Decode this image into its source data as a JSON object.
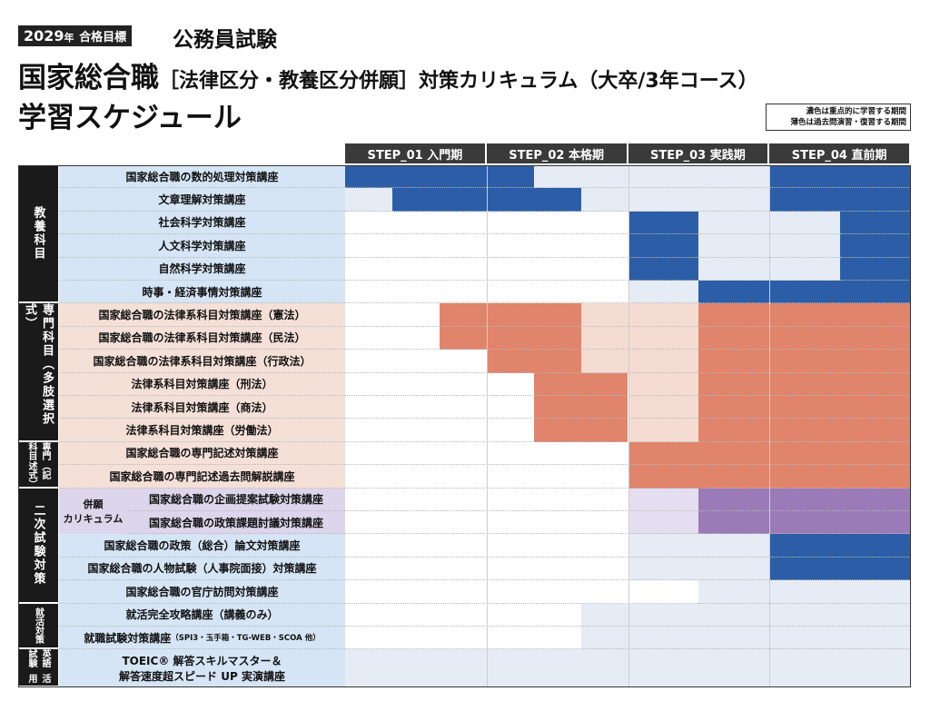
{
  "header": {
    "badge_year": "2029",
    "badge_year_suffix": "年",
    "badge_goal": "合格目標",
    "category": "公務員試験",
    "title_main": "国家総合職",
    "title_bracket": "［法律区分・教養区分併願］",
    "title_rest": "対策カリキュラム（大卒/3年コース）",
    "title_line2": "学習スケジュール"
  },
  "legend": [
    "濃色は重点的に学習する期間",
    "薄色は過去問演習・復習する期間"
  ],
  "steps": [
    "STEP_01 入門期",
    "STEP_02 本格期",
    "STEP_03 実践期",
    "STEP_04 直前期"
  ],
  "groups": [
    {
      "label": "教養科目",
      "rows": [
        "国家総合職の数的処理対策講座",
        "文章理解対策講座",
        "社会科学対策講座",
        "人文科学対策講座",
        "自然科学対策講座",
        "時事・経済事情対策講座"
      ]
    },
    {
      "label": "専門科目（多肢選択式）",
      "rows": [
        "国家総合職の法律系科目対策講座（憲法）",
        "国家総合職の法律系科目対策講座（民法）",
        "国家総合職の法律系科目対策講座（行政法）",
        "法律系科目対策講座（刑法）",
        "法律系科目対策講座（商法）",
        "法律系科目対策講座（労働法）"
      ]
    },
    {
      "label": "専門科目",
      "sublabel": "（記述式）",
      "rows": [
        "国家総合職の専門記述対策講座",
        "国家総合職の専門記述過去問解説講座"
      ]
    },
    {
      "label": "二次試験対策",
      "subgroup": {
        "label_lines": [
          "併願",
          "カリキュラム"
        ],
        "rows": [
          "国家総合職の企画提案試験対策講座",
          "国家総合職の政策課題討議対策講座"
        ]
      },
      "rows": [
        "国家総合職の政策（総合）論文対策講座",
        "国家総合職の人物試験（人事院面接）対策講座",
        "国家総合職の官庁訪問対策講座"
      ]
    },
    {
      "label": "就活",
      "sublabel": "対策",
      "rows": [
        "就活完全攻略講座（講義のみ）",
        {
          "text": "就職試験対策講座",
          "note": "（SPI3・玉手箱・TG-WEB・SCOA 他）"
        }
      ]
    },
    {
      "label": "英語試験",
      "sublabel": "活用",
      "rows": [
        {
          "lines": [
            "TOEIC® 解答スキルマスター＆",
            "解答速度超スピード UP 実演講座"
          ]
        }
      ]
    }
  ]
}
